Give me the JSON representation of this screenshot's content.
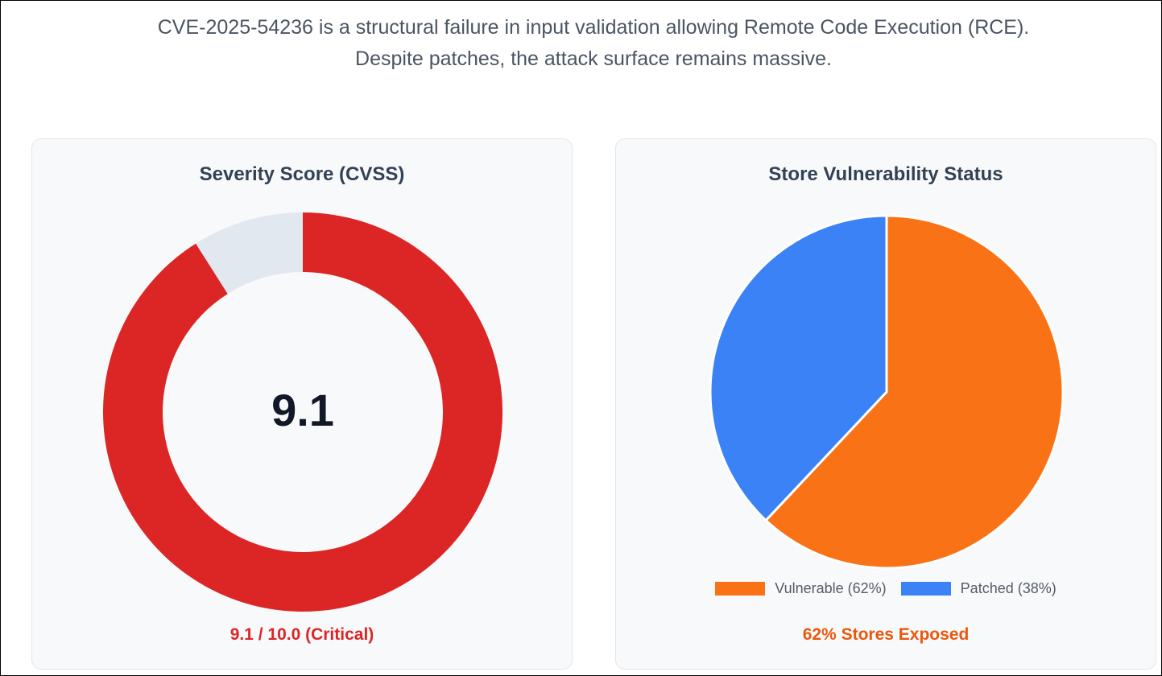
{
  "intro": {
    "text": "CVE-2025-54236 is a structural failure in input validation allowing Remote Code Execution (RCE). Despite patches, the attack surface remains massive."
  },
  "severity_card": {
    "title": "Severity Score (CVSS)",
    "center_value": "9.1",
    "footer": "9.1 / 10.0 (Critical)"
  },
  "status_card": {
    "title": "Store Vulnerability Status",
    "footer": "62% Stores Exposed",
    "legend": [
      {
        "label": "Vulnerable (62%)"
      },
      {
        "label": "Patched (38%)"
      }
    ]
  },
  "chart_data": [
    {
      "type": "pie",
      "variant": "doughnut",
      "title": "Severity Score (CVSS)",
      "slices": [
        {
          "name": "",
          "value": 9.1,
          "color": "#dc2626"
        },
        {
          "name": "",
          "value": 0.9,
          "color": "#e2e8f0"
        }
      ],
      "max": 10.0
    },
    {
      "type": "pie",
      "title": "Store Vulnerability Status",
      "slices": [
        {
          "name": "Vulnerable (62%)",
          "value": 62,
          "color": "#f97316"
        },
        {
          "name": "Patched (38%)",
          "value": 38,
          "color": "#3b82f6"
        }
      ],
      "legend_position": "bottom"
    }
  ]
}
